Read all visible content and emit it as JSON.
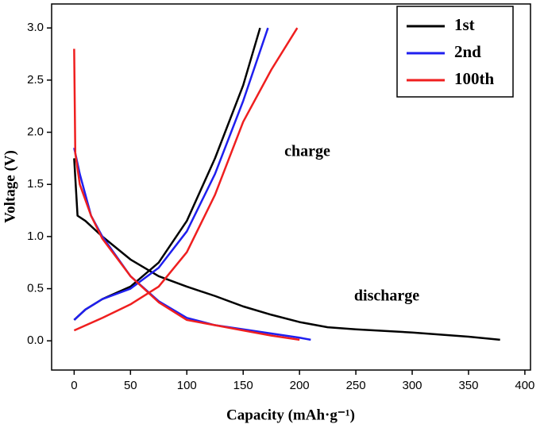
{
  "chart_data": {
    "type": "line",
    "x_label": "Capacity (mAh·g⁻¹)",
    "y_label": "Voltage (V)",
    "annotations": [
      "charge",
      "discharge"
    ],
    "xlim": [
      -20,
      405
    ],
    "ylim": [
      -0.28,
      3.23
    ],
    "xticks": [
      0,
      50,
      100,
      150,
      200,
      250,
      300,
      350,
      400
    ],
    "yticks": [
      {
        "value": 0,
        "label": "0.0"
      },
      {
        "value": 0.5,
        "label": "0.5"
      },
      {
        "value": 1,
        "label": "1.0"
      },
      {
        "value": 1.5,
        "label": "1.5"
      },
      {
        "value": 2,
        "label": "2.0"
      },
      {
        "value": 2.5,
        "label": "2.5"
      },
      {
        "value": 3,
        "label": "3.0"
      }
    ],
    "legend": "upper right",
    "series": [
      {
        "name": "1st",
        "color": "#000000",
        "discharge": {
          "x": [
            0,
            3,
            10,
            25,
            50,
            75,
            100,
            125,
            150,
            175,
            200,
            225,
            250,
            300,
            350,
            378
          ],
          "values": [
            1.75,
            1.2,
            1.15,
            1.0,
            0.78,
            0.62,
            0.52,
            0.43,
            0.33,
            0.25,
            0.18,
            0.13,
            0.11,
            0.08,
            0.04,
            0.01
          ]
        },
        "charge": {
          "x": [
            0,
            10,
            25,
            50,
            75,
            100,
            125,
            150,
            165
          ],
          "values": [
            0.2,
            0.3,
            0.4,
            0.52,
            0.75,
            1.15,
            1.75,
            2.45,
            3.0
          ]
        }
      },
      {
        "name": "2nd",
        "color": "#1f1fef",
        "discharge": {
          "x": [
            0,
            5,
            15,
            25,
            50,
            75,
            100,
            125,
            150,
            175,
            200,
            210
          ],
          "values": [
            1.85,
            1.6,
            1.2,
            1.0,
            0.62,
            0.38,
            0.22,
            0.15,
            0.11,
            0.07,
            0.03,
            0.01
          ]
        },
        "charge": {
          "x": [
            0,
            10,
            25,
            50,
            75,
            100,
            125,
            150,
            172
          ],
          "values": [
            0.2,
            0.3,
            0.4,
            0.5,
            0.7,
            1.05,
            1.6,
            2.3,
            3.0
          ]
        }
      },
      {
        "name": "100th",
        "color": "#ef1f1f",
        "discharge": {
          "x": [
            0,
            1,
            5,
            15,
            25,
            50,
            75,
            100,
            125,
            150,
            175,
            200
          ],
          "values": [
            2.8,
            1.8,
            1.5,
            1.2,
            0.98,
            0.62,
            0.37,
            0.2,
            0.15,
            0.1,
            0.05,
            0.01
          ]
        },
        "charge": {
          "x": [
            0,
            25,
            50,
            75,
            100,
            125,
            150,
            175,
            198
          ],
          "values": [
            0.1,
            0.22,
            0.35,
            0.52,
            0.85,
            1.4,
            2.1,
            2.6,
            3.0
          ]
        }
      }
    ]
  }
}
